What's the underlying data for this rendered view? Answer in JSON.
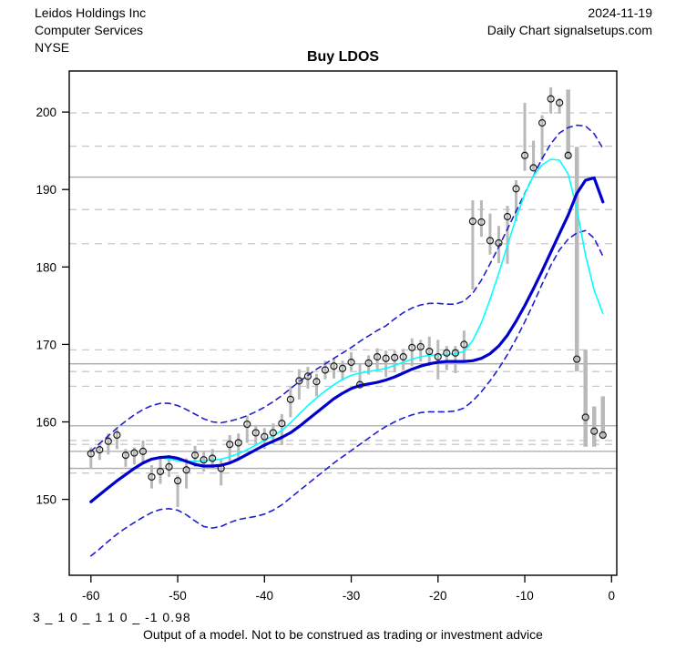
{
  "header": {
    "company": "Leidos Holdings Inc",
    "industry": "Computer Services",
    "exchange": "NYSE",
    "date": "2024-11-19",
    "source": "Daily Chart signalsetups.com"
  },
  "title": "Buy LDOS",
  "footer": {
    "model_code": "3 _ 1 0 _ 1 1 0 _ -1 0.98",
    "disclaimer": "Output of a model. Not to be construed as trading or investment advice"
  },
  "chart_data": {
    "type": "line",
    "subtype": "daily-price-bars-with-moving-averages-and-bands",
    "title": "Buy LDOS",
    "xlabel": "",
    "ylabel": "",
    "xlim": [
      -62.5,
      0.6
    ],
    "ylim": [
      140.2,
      205.3
    ],
    "x_ticks": [
      -60,
      -50,
      -40,
      -30,
      -20,
      -10,
      0
    ],
    "y_ticks": [
      150,
      160,
      170,
      180,
      190,
      200
    ],
    "grid": "horizontal-levels",
    "legend": "none",
    "hlines_solid": [
      191.6,
      167.5,
      159.5,
      156.2,
      154.0
    ],
    "hlines_dashed": [
      199.9,
      195.6,
      187.4,
      183.0,
      169.3,
      166.5,
      164.6,
      157.6,
      157.1,
      153.4
    ],
    "days": [
      -60,
      -59,
      -58,
      -57,
      -56,
      -55,
      -54,
      -53,
      -52,
      -51,
      -50,
      -49,
      -48,
      -47,
      -46,
      -45,
      -44,
      -43,
      -42,
      -41,
      -40,
      -39,
      -38,
      -37,
      -36,
      -35,
      -34,
      -33,
      -32,
      -31,
      -30,
      -29,
      -28,
      -27,
      -26,
      -25,
      -24,
      -23,
      -22,
      -21,
      -20,
      -19,
      -18,
      -17,
      -16,
      -15,
      -14,
      -13,
      -12,
      -11,
      -10,
      -9,
      -8,
      -7,
      -6,
      -5,
      -4,
      -3,
      -2,
      -1
    ],
    "price_bars": {
      "close": [
        155.9,
        156.4,
        157.5,
        158.3,
        155.7,
        156.0,
        156.2,
        152.9,
        153.6,
        154.2,
        152.4,
        153.8,
        155.7,
        155.1,
        155.3,
        154.0,
        157.1,
        157.3,
        159.7,
        158.6,
        158.1,
        158.6,
        159.8,
        162.9,
        165.3,
        165.9,
        165.2,
        166.7,
        167.2,
        166.9,
        167.7,
        164.8,
        167.6,
        168.4,
        168.2,
        168.3,
        168.4,
        169.6,
        169.7,
        169.1,
        168.4,
        168.9,
        168.9,
        170.0,
        185.9,
        185.8,
        183.4,
        183.1,
        186.5,
        190.1,
        194.4,
        192.8,
        198.6,
        201.7,
        201.2,
        194.4,
        168.1,
        160.6,
        158.8,
        158.3
      ],
      "high": [
        156.7,
        157.3,
        158.5,
        159.1,
        156.5,
        156.7,
        157.6,
        154.4,
        155.3,
        155.7,
        153.1,
        155.3,
        156.9,
        156.3,
        156.5,
        155.1,
        158.3,
        158.5,
        160.8,
        159.6,
        159.2,
        159.8,
        161.0,
        164.5,
        166.8,
        167.1,
        166.2,
        167.9,
        168.2,
        167.9,
        169.0,
        167.6,
        168.6,
        169.5,
        169.2,
        169.2,
        169.4,
        170.8,
        170.6,
        171.0,
        170.6,
        169.8,
        169.8,
        171.8,
        188.6,
        188.6,
        186.9,
        185.3,
        187.9,
        191.2,
        201.2,
        196.3,
        199.6,
        203.2,
        201.8,
        202.9,
        195.5,
        169.3,
        162.0,
        163.3
      ],
      "low": [
        153.9,
        155.1,
        155.8,
        156.5,
        154.2,
        154.5,
        154.5,
        151.4,
        152.0,
        152.9,
        149.0,
        151.4,
        154.2,
        153.6,
        153.9,
        151.8,
        154.9,
        155.1,
        157.3,
        157.1,
        156.5,
        157.1,
        157.0,
        160.6,
        162.9,
        164.3,
        163.3,
        165.5,
        165.6,
        165.3,
        166.6,
        164.5,
        166.1,
        166.8,
        165.8,
        166.4,
        166.7,
        167.2,
        167.8,
        167.2,
        165.5,
        166.7,
        166.3,
        167.8,
        177.1,
        183.9,
        181.6,
        180.5,
        180.4,
        185.9,
        192.4,
        192.5,
        193.7,
        199.8,
        199.8,
        193.9,
        166.5,
        156.8,
        156.8,
        157.8
      ]
    },
    "series": [
      {
        "name": "slow_ma",
        "style": "solid",
        "width": 3.2,
        "color": "#0000cd",
        "values": [
          149.7,
          150.6,
          151.5,
          152.4,
          153.2,
          154.0,
          154.7,
          155.2,
          155.4,
          155.5,
          155.3,
          154.9,
          154.5,
          154.3,
          154.3,
          154.4,
          154.7,
          155.2,
          155.8,
          156.4,
          157.0,
          157.5,
          158.0,
          158.6,
          159.4,
          160.3,
          161.2,
          162.1,
          163.0,
          163.7,
          164.3,
          164.7,
          164.9,
          165.1,
          165.4,
          165.8,
          166.3,
          166.8,
          167.2,
          167.5,
          167.7,
          167.8,
          167.8,
          167.8,
          167.9,
          168.2,
          168.8,
          169.8,
          171.2,
          173.0,
          175.0,
          177.2,
          179.5,
          181.9,
          184.3,
          186.7,
          189.5,
          191.2,
          191.5,
          188.4
        ]
      },
      {
        "name": "fast_ma",
        "style": "solid",
        "width": 1.6,
        "color": "#00ffff",
        "values": [
          null,
          null,
          null,
          null,
          null,
          null,
          null,
          null,
          155.4,
          155.2,
          155.0,
          154.9,
          154.9,
          155.0,
          155.1,
          155.2,
          155.5,
          155.9,
          156.4,
          157.0,
          157.6,
          158.2,
          158.9,
          159.9,
          161.0,
          162.1,
          163.1,
          164.0,
          164.8,
          165.5,
          166.0,
          166.3,
          166.5,
          166.7,
          166.9,
          167.3,
          167.7,
          168.1,
          168.4,
          168.6,
          168.7,
          168.7,
          168.8,
          169.1,
          170.5,
          172.8,
          175.8,
          179.2,
          182.8,
          186.3,
          189.4,
          191.8,
          193.2,
          193.9,
          193.8,
          192.0,
          187.5,
          181.5,
          177.0,
          174.0
        ]
      },
      {
        "name": "upper_band",
        "style": "dashed",
        "width": 1.6,
        "color": "#1f1fd1",
        "values": [
          156.2,
          157.2,
          158.2,
          159.2,
          160.1,
          160.9,
          161.6,
          162.1,
          162.4,
          162.4,
          162.1,
          161.6,
          161.0,
          160.4,
          160.0,
          159.9,
          160.1,
          160.4,
          160.8,
          161.3,
          161.9,
          162.6,
          163.4,
          164.3,
          165.2,
          166.0,
          166.8,
          167.5,
          168.2,
          168.9,
          169.6,
          170.4,
          171.1,
          171.8,
          172.4,
          173.3,
          174.1,
          174.7,
          175.1,
          175.3,
          175.3,
          175.2,
          175.2,
          175.6,
          176.6,
          178.3,
          180.4,
          182.6,
          184.9,
          187.2,
          189.5,
          191.8,
          194.0,
          195.9,
          197.3,
          198.0,
          198.3,
          198.2,
          197.2,
          195.3
        ]
      },
      {
        "name": "lower_band",
        "style": "dashed",
        "width": 1.6,
        "color": "#1f1fd1",
        "values": [
          142.7,
          143.6,
          144.6,
          145.5,
          146.3,
          147.0,
          147.7,
          148.3,
          148.7,
          148.8,
          148.6,
          148.0,
          147.2,
          146.5,
          146.3,
          146.5,
          147.0,
          147.4,
          147.6,
          147.8,
          148.1,
          148.6,
          149.3,
          150.2,
          151.1,
          152.0,
          152.9,
          153.8,
          154.7,
          155.5,
          156.3,
          157.1,
          157.9,
          158.7,
          159.4,
          160.0,
          160.5,
          160.9,
          161.2,
          161.3,
          161.3,
          161.3,
          161.4,
          161.8,
          162.7,
          163.9,
          165.3,
          166.9,
          168.7,
          170.7,
          172.9,
          175.3,
          177.8,
          180.2,
          182.2,
          183.6,
          184.4,
          184.7,
          183.7,
          181.4
        ]
      }
    ],
    "colors": {
      "bar_gray": "#b9b9b9",
      "grid_solid": "#a9a9a9",
      "grid_dashed": "#c9c9c9",
      "slow_ma": "#0000cd",
      "fast_ma": "#00ffff",
      "band": "#1f1fd1",
      "close_circle": "#1a1a1a",
      "border": "#000000"
    }
  }
}
